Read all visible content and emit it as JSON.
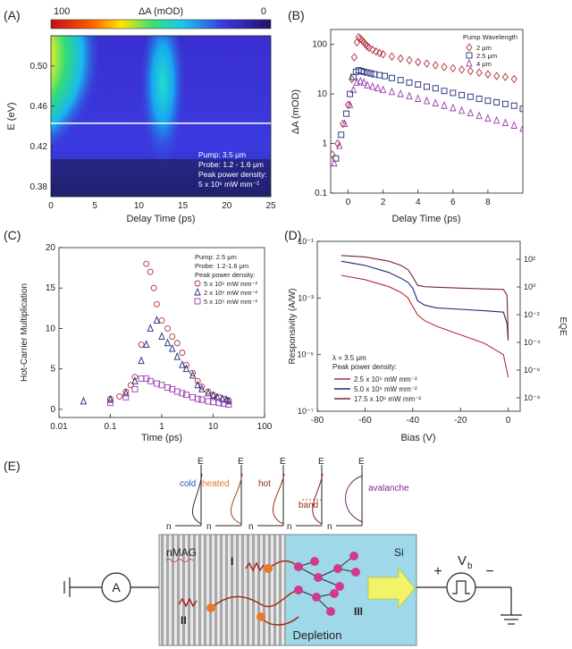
{
  "panel_labels": [
    "(A)",
    "(B)",
    "(C)",
    "(D)",
    "(E)"
  ],
  "colors": {
    "series_red": "#b22e3c",
    "series_navy": "#1d2a78",
    "series_purple": "#9a3ab0",
    "axis": "#222222",
    "si_fill": "#9fd8e8",
    "arrow_yellow": "#f3f36a"
  },
  "chart_data": [
    {
      "id": "A",
      "type": "heatmap",
      "title": "ΔA (mOD)",
      "colorbar": {
        "min_label": "100",
        "max_label": "0"
      },
      "xlabel": "Delay Time (ps)",
      "ylabel": "E (eV)",
      "xlim": [
        0,
        25
      ],
      "ylim": [
        0.37,
        0.53
      ],
      "xticks": [
        0,
        5,
        10,
        15,
        20,
        25
      ],
      "yticks": [
        0.38,
        0.42,
        0.46,
        0.5
      ],
      "ytick_labels": [
        "0.38",
        "0.42",
        "0.46",
        "0.50"
      ],
      "cut_line_energy": 0.443,
      "pump_times": [
        0.5,
        12
      ],
      "annotations": [
        "Pump: 3.5 μm",
        "Probe: 1.2 - 1.6 μm",
        "Peak power density:",
        "5 x 10⁶ mW mm⁻²"
      ]
    },
    {
      "id": "B",
      "type": "scatter",
      "xlabel": "Delay Time (ps)",
      "ylabel": "ΔA (mOD)",
      "xlim": [
        -1,
        10
      ],
      "ylim": [
        0.1,
        200
      ],
      "yscale": "log",
      "xticks": [
        0,
        2,
        4,
        6,
        8
      ],
      "yticks": [
        0.1,
        1,
        10,
        100
      ],
      "ytick_labels": [
        "0.1",
        "1",
        "10",
        "100"
      ],
      "legend_title": "Pump Wavelength",
      "series": [
        {
          "name": "2 μm",
          "marker": "diamond",
          "x": [
            -0.9,
            -0.6,
            -0.3,
            0.0,
            0.2,
            0.35,
            0.5,
            0.6,
            0.7,
            0.8,
            0.9,
            1.0,
            1.1,
            1.2,
            1.4,
            1.6,
            1.8,
            2.0,
            2.5,
            3.0,
            3.5,
            4.0,
            4.5,
            5.0,
            5.5,
            6.0,
            6.5,
            7.0,
            7.5,
            8.0,
            8.5,
            9.0,
            9.5
          ],
          "y": [
            0.6,
            1,
            2.5,
            6,
            20,
            55,
            110,
            140,
            130,
            120,
            110,
            100,
            92,
            86,
            78,
            72,
            67,
            63,
            57,
            52,
            48,
            44,
            41,
            38,
            35,
            33,
            31,
            29,
            27,
            25,
            23,
            22,
            20
          ]
        },
        {
          "name": "2.5 μm",
          "marker": "square",
          "x": [
            -0.7,
            -0.4,
            -0.1,
            0.1,
            0.3,
            0.45,
            0.6,
            0.75,
            0.9,
            1.1,
            1.3,
            1.5,
            1.8,
            2.1,
            2.5,
            3.0,
            3.5,
            4.0,
            4.5,
            5.0,
            5.5,
            6.0,
            6.5,
            7.0,
            7.5,
            8.0,
            8.5,
            9.0,
            9.5,
            10.0
          ],
          "y": [
            0.5,
            1.5,
            4,
            10,
            22,
            28,
            30,
            29,
            28,
            27,
            26,
            25,
            24,
            23,
            21,
            19,
            17,
            15.5,
            14,
            13,
            11.5,
            10.5,
            9.5,
            8.8,
            8,
            7.3,
            6.8,
            6.3,
            5.8,
            5
          ]
        },
        {
          "name": "4 μm",
          "marker": "triangle",
          "x": [
            -0.8,
            -0.5,
            -0.2,
            0.1,
            0.3,
            0.5,
            0.7,
            0.9,
            1.1,
            1.4,
            1.7,
            2.0,
            2.5,
            3.0,
            3.5,
            4.0,
            4.5,
            5.0,
            5.5,
            6.0,
            6.5,
            7.0,
            7.5,
            8.0,
            8.5,
            9.0,
            9.5,
            10.0
          ],
          "y": [
            0.4,
            0.9,
            2.5,
            6,
            12,
            17,
            18,
            17,
            15,
            14,
            13,
            12,
            11,
            10,
            9,
            8,
            7.2,
            6.5,
            5.8,
            5.2,
            4.6,
            4.1,
            3.6,
            3.2,
            2.9,
            2.6,
            2.3,
            2.0
          ]
        }
      ]
    },
    {
      "id": "C",
      "type": "scatter",
      "xlabel": "Time (ps)",
      "ylabel": "Hot-Carrier Multiplication",
      "xlim": [
        0.01,
        100
      ],
      "xscale": "log",
      "ylim": [
        -1,
        20
      ],
      "xticks": [
        0.01,
        0.1,
        1,
        10,
        100
      ],
      "xtick_labels": [
        "0.01",
        "0.1",
        "1",
        "10",
        "100"
      ],
      "yticks": [
        0,
        5,
        10,
        15,
        20
      ],
      "annotations": [
        "Pump: 2.5 μm",
        "Probe: 1.2-1.6 μm",
        "Peak power density:"
      ],
      "series": [
        {
          "name": "5 x 10⁶ mW mm⁻²",
          "marker": "circle",
          "x": [
            0.1,
            0.15,
            0.2,
            0.25,
            0.3,
            0.4,
            0.5,
            0.6,
            0.7,
            0.8,
            1.0,
            1.3,
            1.6,
            2.0,
            2.5,
            3,
            4,
            5,
            6,
            8,
            10,
            13,
            16,
            20
          ],
          "y": [
            1.3,
            1.6,
            2.2,
            3.0,
            4.0,
            8,
            18,
            17,
            15,
            13,
            11,
            10,
            9,
            8.2,
            7.0,
            5.5,
            4.5,
            3.5,
            2.8,
            2.2,
            1.8,
            1.5,
            1.3,
            1.1
          ]
        },
        {
          "name": "2 x 10⁶ mW mm⁻²",
          "marker": "triangle",
          "x": [
            0.03,
            0.1,
            0.2,
            0.3,
            0.4,
            0.5,
            0.6,
            0.8,
            1.0,
            1.3,
            1.6,
            2.0,
            2.5,
            3,
            4,
            5,
            6,
            8,
            10,
            12,
            15,
            18,
            20
          ],
          "y": [
            1.0,
            1.2,
            2.0,
            3.5,
            6,
            8,
            10,
            11,
            9,
            8.2,
            7.5,
            6.5,
            5.5,
            5.0,
            4.2,
            3.0,
            2.5,
            2.0,
            1.7,
            1.5,
            1.3,
            1.2,
            1.0
          ]
        },
        {
          "name": "5 x 10⁵ mW mm⁻²",
          "marker": "square",
          "x": [
            0.1,
            0.2,
            0.3,
            0.4,
            0.5,
            0.6,
            0.8,
            1.0,
            1.3,
            1.6,
            2.0,
            2.5,
            3,
            4,
            5,
            6,
            8,
            10,
            13,
            16,
            20
          ],
          "y": [
            0.8,
            1.5,
            2.5,
            3.8,
            3.8,
            3.5,
            3.2,
            3.0,
            2.7,
            2.5,
            2.2,
            2.0,
            1.8,
            1.5,
            1.3,
            1.2,
            1.0,
            0.9,
            0.8,
            0.7,
            0.6
          ]
        }
      ]
    },
    {
      "id": "D",
      "type": "line",
      "xlabel": "Bias (V)",
      "ylabel": "Responsivity (A/W)",
      "ylabel_right": "EQE",
      "xlim": [
        -80,
        5
      ],
      "xticks": [
        -80,
        -60,
        -40,
        -20,
        0
      ],
      "ylim": [
        -7,
        -1
      ],
      "yscale": "log",
      "yticks_exp": [
        -7,
        -5,
        -3,
        -1
      ],
      "ytick_labels": [
        "10⁻⁷",
        "10⁻⁵",
        "10⁻³",
        "10⁻¹"
      ],
      "right_tick_labels": [
        "10²",
        "10⁰",
        "10⁻²",
        "10⁻⁴",
        "10⁻⁶",
        "10⁻⁸"
      ],
      "legend_title": [
        "λ = 3.5 μm",
        "Peak power density:"
      ],
      "series": [
        {
          "name": "2.5 x 10⁵ mW mm⁻²",
          "color": "#b22e3c",
          "x": [
            -70,
            -60,
            -50,
            -45,
            -42,
            -40,
            -38,
            -35,
            -30,
            -20,
            -10,
            -2,
            0
          ],
          "y": [
            -2.2,
            -2.35,
            -2.6,
            -2.8,
            -3.0,
            -3.3,
            -3.6,
            -3.8,
            -4.0,
            -4.3,
            -4.6,
            -5.0,
            -5.8
          ]
        },
        {
          "name": "5.0 x 10⁶ mW mm⁻²",
          "color": "#1d2a78",
          "x": [
            -70,
            -60,
            -50,
            -45,
            -42,
            -40,
            -38,
            -35,
            -30,
            -20,
            -10,
            -2,
            -0.5,
            0
          ],
          "y": [
            -1.7,
            -1.85,
            -2.1,
            -2.3,
            -2.45,
            -2.65,
            -3.1,
            -3.25,
            -3.35,
            -3.4,
            -3.45,
            -3.5,
            -3.9,
            -4.5
          ]
        },
        {
          "name": "17.5 x 10⁶ mW mm⁻²",
          "color": "#7a2530",
          "x": [
            -70,
            -60,
            -50,
            -45,
            -42,
            -40,
            -38,
            -35,
            -30,
            -20,
            -10,
            -2,
            -0.5,
            0
          ],
          "y": [
            -1.5,
            -1.55,
            -1.7,
            -1.85,
            -2.0,
            -2.25,
            -2.55,
            -2.6,
            -2.62,
            -2.65,
            -2.68,
            -2.7,
            -2.9,
            -4.4
          ]
        }
      ]
    }
  ],
  "panel_e": {
    "distribution_labels": [
      "cold",
      "heated",
      "hot",
      "band",
      "avalanche"
    ],
    "axis_e_label": "E",
    "axis_n_label": "n",
    "region_nmag": "nMAG",
    "region_si": "Si",
    "region_depletion": "Depletion",
    "process_labels": [
      "I",
      "II",
      "III"
    ],
    "ammeter_label": "A",
    "bias_label": "V",
    "bias_sub": "b",
    "plus_sign": "+",
    "minus_sign": "−"
  }
}
